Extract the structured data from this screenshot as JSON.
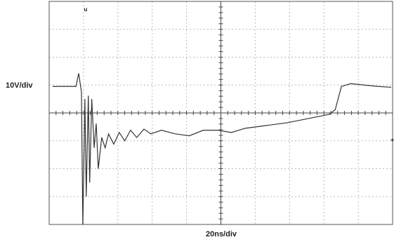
{
  "chart_data": {
    "type": "line",
    "y_label": "10V/div",
    "x_label": "20ns/div",
    "x": [
      -4.9,
      -4.22,
      -4.14,
      -4.06,
      -4.02,
      -3.96,
      -3.92,
      -3.86,
      -3.82,
      -3.76,
      -3.69,
      -3.63,
      -3.57,
      -3.47,
      -3.37,
      -3.27,
      -3.12,
      -2.96,
      -2.8,
      -2.63,
      -2.45,
      -2.24,
      -2.04,
      -1.73,
      -1.33,
      -0.92,
      -0.51,
      -0.1,
      0.31,
      0.71,
      1.33,
      1.94,
      2.55,
      3.16,
      3.33,
      3.51,
      3.78,
      4.18,
      4.59,
      4.96
    ],
    "series": [
      {
        "color": "#333333",
        "values": [
          0.95,
          0.95,
          1.42,
          0.75,
          -4,
          0.5,
          -3,
          0.62,
          -2.5,
          0.5,
          -1.25,
          -0.38,
          -2,
          -0.88,
          -1.25,
          -0.75,
          -1.12,
          -0.7,
          -1,
          -0.62,
          -0.88,
          -0.58,
          -0.75,
          -0.62,
          -0.75,
          -0.82,
          -0.62,
          -0.62,
          -0.7,
          -0.55,
          -0.45,
          -0.35,
          -0.2,
          -0.05,
          0.12,
          0.95,
          1.05,
          1,
          0.95,
          0.92
        ]
      }
    ],
    "xlim": [
      -5,
      5
    ],
    "ylim": [
      -4,
      4
    ],
    "xticks": [
      -5,
      -4,
      -3,
      -2,
      -1,
      0,
      1,
      2,
      3,
      4,
      5
    ],
    "yticks": [
      -4,
      -3,
      -2,
      -1,
      0,
      1,
      2,
      3,
      4
    ],
    "grid": true
  }
}
